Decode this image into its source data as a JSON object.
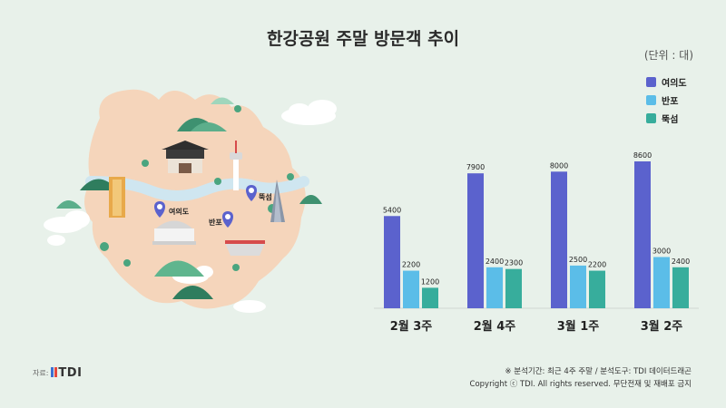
{
  "title": "한강공원 주말 방문객 추이",
  "unit": "(단위 : 대)",
  "map": {
    "markers": [
      "여의도",
      "반포",
      "뚝섬"
    ]
  },
  "chart_data": {
    "type": "bar",
    "categories": [
      "2월 3주",
      "2월 4주",
      "3월 1주",
      "3월 2주"
    ],
    "series": [
      {
        "name": "여의도",
        "color": "#5b62cd",
        "values": [
          5400,
          7900,
          8000,
          8600
        ]
      },
      {
        "name": "반포",
        "color": "#5bbde8",
        "values": [
          2200,
          2400,
          2500,
          3000
        ]
      },
      {
        "name": "뚝섬",
        "color": "#37ad9c",
        "values": [
          1200,
          2300,
          2200,
          2400
        ]
      }
    ],
    "ylim": [
      0,
      8600
    ],
    "legend": "top-right",
    "grid": false
  },
  "footer": {
    "source_label": "자료:",
    "logo_text": "TDI",
    "period_note": "※ 분석기간: 최근 4주 주말 / 분석도구: TDI 데이터드래곤",
    "copyright": "Copyright ⓒ TDI. All rights reserved. 무단전재 및 재배포 금지"
  }
}
